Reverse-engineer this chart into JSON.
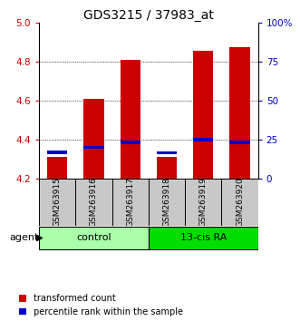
{
  "title": "GDS3215 / 37983_at",
  "samples": [
    "GSM263915",
    "GSM263916",
    "GSM263917",
    "GSM263918",
    "GSM263919",
    "GSM263920"
  ],
  "red_values": [
    4.31,
    4.61,
    4.81,
    4.31,
    4.855,
    4.875
  ],
  "blue_values": [
    4.335,
    4.36,
    4.387,
    4.332,
    4.4,
    4.387
  ],
  "y_min": 4.2,
  "y_max": 5.0,
  "y_ticks": [
    4.2,
    4.4,
    4.6,
    4.8,
    5.0
  ],
  "right_y_ticks": [
    0,
    25,
    50,
    75,
    100
  ],
  "right_y_labels": [
    "0",
    "25",
    "50",
    "75",
    "100%"
  ],
  "groups": [
    {
      "label": "control",
      "indices": [
        0,
        1,
        2
      ],
      "color": "#AAFFAA"
    },
    {
      "label": "13-cis RA",
      "indices": [
        3,
        4,
        5
      ],
      "color": "#00DD00"
    }
  ],
  "agent_label": "agent",
  "legend": [
    {
      "color": "#CC0000",
      "label": "transformed count"
    },
    {
      "color": "#0000CC",
      "label": "percentile rank within the sample"
    }
  ],
  "bar_width": 0.55,
  "red_color": "#CC0000",
  "blue_color": "#0000CC",
  "label_box_color": "#C8C8C8",
  "title_fontsize": 10,
  "tick_fontsize": 7.5,
  "legend_fontsize": 7,
  "sample_fontsize": 6.5
}
